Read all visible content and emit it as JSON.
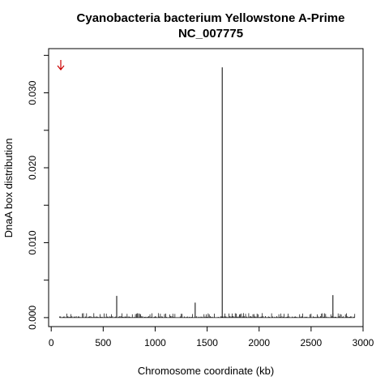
{
  "chart_data": {
    "type": "bar",
    "title": "Cyanobacteria bacterium Yellowstone A-Prime",
    "subtitle": "NC_007775",
    "xlabel": "Chromosome coordinate (kb)",
    "ylabel": "DnaA box distribution",
    "xlim": [
      -25,
      3000
    ],
    "ylim": [
      -0.0012,
      0.0359
    ],
    "xticks": [
      0,
      500,
      1000,
      1500,
      2000,
      2500,
      3000
    ],
    "yticks": [
      0.0,
      0.01,
      0.02,
      0.03
    ],
    "ytick_labels": [
      "0.000",
      "0.010",
      "0.020",
      "0.030"
    ],
    "grid": false,
    "legend": "none",
    "bar_color": "#000000",
    "marker": {
      "x": 0,
      "color": "#cc0000",
      "icon": "down-arrow-icon"
    },
    "peaks": [
      {
        "x": 630,
        "y": 0.0029
      },
      {
        "x": 1385,
        "y": 0.002
      },
      {
        "x": 1645,
        "y": 0.0334
      },
      {
        "x": 2710,
        "y": 0.003
      }
    ],
    "baseline": {
      "x_start": 80,
      "x_end": 2920,
      "step": 10,
      "typical_max": 0.0006,
      "extent": 0.0001
    }
  }
}
